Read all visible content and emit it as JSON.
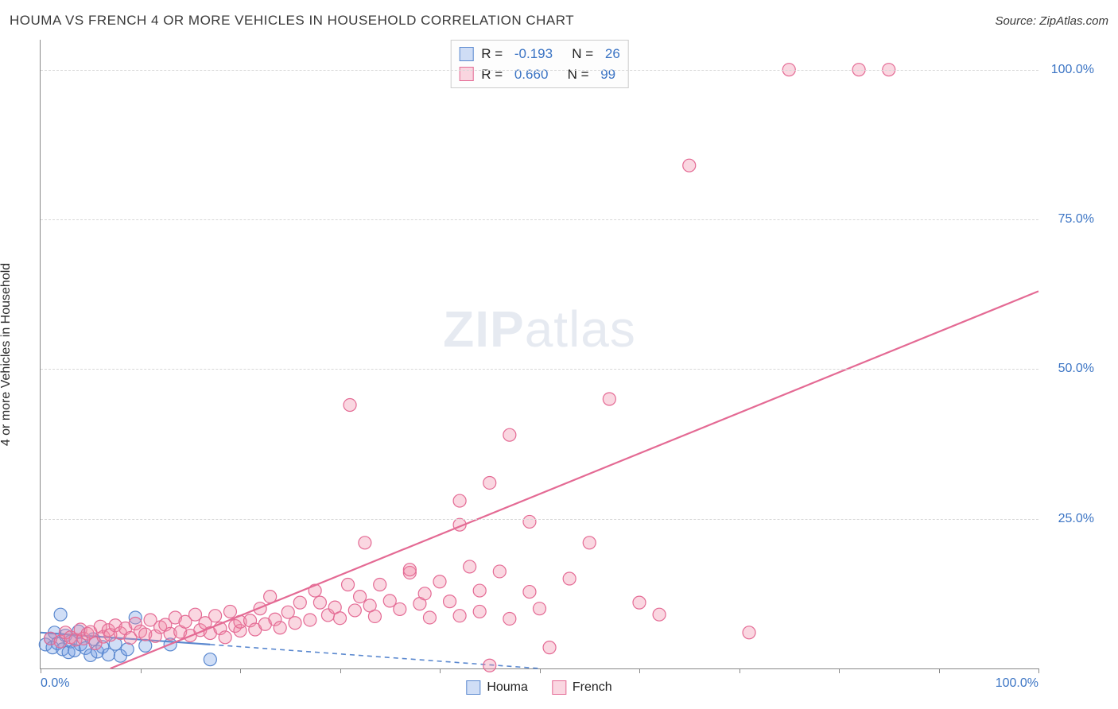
{
  "header": {
    "title": "HOUMA VS FRENCH 4 OR MORE VEHICLES IN HOUSEHOLD CORRELATION CHART",
    "source": "Source: ZipAtlas.com"
  },
  "ylabel": "4 or more Vehicles in Household",
  "watermark_zip": "ZIP",
  "watermark_atlas": "atlas",
  "chart": {
    "type": "scatter",
    "xlim": [
      0,
      100
    ],
    "ylim": [
      0,
      105
    ],
    "xtick_step": 10,
    "xtick_labels": {
      "0": "0.0%",
      "100": "100.0%"
    },
    "ygrid": [
      25,
      50,
      75,
      100
    ],
    "ytick_labels": {
      "25": "25.0%",
      "50": "50.0%",
      "75": "75.0%",
      "100": "100.0%"
    },
    "background_color": "#ffffff",
    "grid_color": "#d8d8d8",
    "axis_color": "#888888",
    "tick_label_color": "#3b74c4",
    "marker_radius": 8,
    "marker_stroke_width": 1.2,
    "series": [
      {
        "name": "Houma",
        "fill": "rgba(120,160,230,0.35)",
        "stroke": "#5a88cf",
        "R": "-0.193",
        "N": "26",
        "trend": {
          "x1": 0,
          "y1": 6.0,
          "x2": 17,
          "y2": 4.0,
          "dash_x1": 17,
          "dash_y1": 4.0,
          "dash_x2": 50,
          "dash_y2": 0
        },
        "points": [
          [
            0.5,
            4
          ],
          [
            1,
            5
          ],
          [
            1.2,
            3.5
          ],
          [
            1.4,
            6
          ],
          [
            1.7,
            4.2
          ],
          [
            2,
            9
          ],
          [
            2.2,
            3.2
          ],
          [
            2.5,
            5.5
          ],
          [
            2.8,
            2.7
          ],
          [
            3,
            4.5
          ],
          [
            3.4,
            3
          ],
          [
            3.8,
            6.2
          ],
          [
            4,
            4
          ],
          [
            4.5,
            3.4
          ],
          [
            5,
            2.2
          ],
          [
            5.3,
            4.9
          ],
          [
            5.7,
            2.8
          ],
          [
            6.2,
            3.6
          ],
          [
            6.8,
            2.3
          ],
          [
            7.5,
            4.1
          ],
          [
            8,
            2.1
          ],
          [
            8.7,
            3.2
          ],
          [
            9.5,
            8.5
          ],
          [
            10.5,
            3.8
          ],
          [
            13,
            4
          ],
          [
            17,
            1.5
          ]
        ]
      },
      {
        "name": "French",
        "fill": "rgba(240,140,170,0.35)",
        "stroke": "#e46a94",
        "R": "0.660",
        "N": "99",
        "trend": {
          "x1": 7,
          "y1": 0,
          "x2": 100,
          "y2": 63
        },
        "points": [
          [
            1,
            5
          ],
          [
            2,
            4.5
          ],
          [
            2.5,
            6
          ],
          [
            3,
            5.2
          ],
          [
            3.5,
            4.8
          ],
          [
            4,
            6.5
          ],
          [
            4.3,
            5
          ],
          [
            4.7,
            5.8
          ],
          [
            5,
            6.1
          ],
          [
            5.5,
            4.2
          ],
          [
            6,
            7
          ],
          [
            6.3,
            5.3
          ],
          [
            6.8,
            6.4
          ],
          [
            7,
            5.6
          ],
          [
            7.5,
            7.2
          ],
          [
            8,
            5.9
          ],
          [
            8.5,
            6.7
          ],
          [
            9,
            5.1
          ],
          [
            9.5,
            7.5
          ],
          [
            10,
            6.2
          ],
          [
            10.5,
            5.7
          ],
          [
            11,
            8.1
          ],
          [
            11.5,
            5.4
          ],
          [
            12,
            6.9
          ],
          [
            12.5,
            7.3
          ],
          [
            13,
            5.8
          ],
          [
            13.5,
            8.5
          ],
          [
            14,
            6.1
          ],
          [
            14.5,
            7.8
          ],
          [
            15,
            5.5
          ],
          [
            15.5,
            9
          ],
          [
            16,
            6.4
          ],
          [
            16.5,
            7.6
          ],
          [
            17,
            5.9
          ],
          [
            17.5,
            8.8
          ],
          [
            18,
            6.7
          ],
          [
            18.5,
            5.2
          ],
          [
            19,
            9.5
          ],
          [
            19.5,
            7.1
          ],
          [
            20,
            6.3
          ],
          [
            20,
            7.8
          ],
          [
            21,
            8
          ],
          [
            21.5,
            6.5
          ],
          [
            22,
            10
          ],
          [
            22.5,
            7.4
          ],
          [
            23,
            12
          ],
          [
            23.5,
            8.2
          ],
          [
            24,
            6.8
          ],
          [
            24.8,
            9.4
          ],
          [
            25.5,
            7.6
          ],
          [
            26,
            11
          ],
          [
            27,
            8.1
          ],
          [
            27.5,
            13
          ],
          [
            28,
            11
          ],
          [
            28.8,
            8.9
          ],
          [
            29.5,
            10.2
          ],
          [
            30,
            8.4
          ],
          [
            30.8,
            14
          ],
          [
            31,
            44
          ],
          [
            31.5,
            9.7
          ],
          [
            32,
            12
          ],
          [
            32.5,
            21
          ],
          [
            33,
            10.5
          ],
          [
            33.5,
            8.7
          ],
          [
            34,
            14
          ],
          [
            35,
            11.3
          ],
          [
            36,
            9.9
          ],
          [
            37,
            16
          ],
          [
            37,
            16.5
          ],
          [
            38,
            10.8
          ],
          [
            38.5,
            12.5
          ],
          [
            39,
            8.5
          ],
          [
            40,
            14.5
          ],
          [
            41,
            11.2
          ],
          [
            42,
            8.8
          ],
          [
            42,
            24
          ],
          [
            42,
            28
          ],
          [
            43,
            17
          ],
          [
            44,
            9.5
          ],
          [
            44,
            13
          ],
          [
            45,
            0.5
          ],
          [
            45,
            31
          ],
          [
            46,
            16.2
          ],
          [
            47,
            8.3
          ],
          [
            47,
            39
          ],
          [
            49,
            12.8
          ],
          [
            49,
            24.5
          ],
          [
            50,
            10
          ],
          [
            51,
            3.5
          ],
          [
            53,
            15
          ],
          [
            55,
            21
          ],
          [
            57,
            45
          ],
          [
            60,
            11
          ],
          [
            62,
            9
          ],
          [
            65,
            84
          ],
          [
            71,
            6
          ],
          [
            75,
            100
          ],
          [
            82,
            100
          ],
          [
            85,
            100
          ]
        ]
      }
    ],
    "legend": [
      {
        "label": "Houma",
        "fill": "rgba(120,160,230,0.35)",
        "stroke": "#5a88cf"
      },
      {
        "label": "French",
        "fill": "rgba(240,140,170,0.35)",
        "stroke": "#e46a94"
      }
    ]
  }
}
